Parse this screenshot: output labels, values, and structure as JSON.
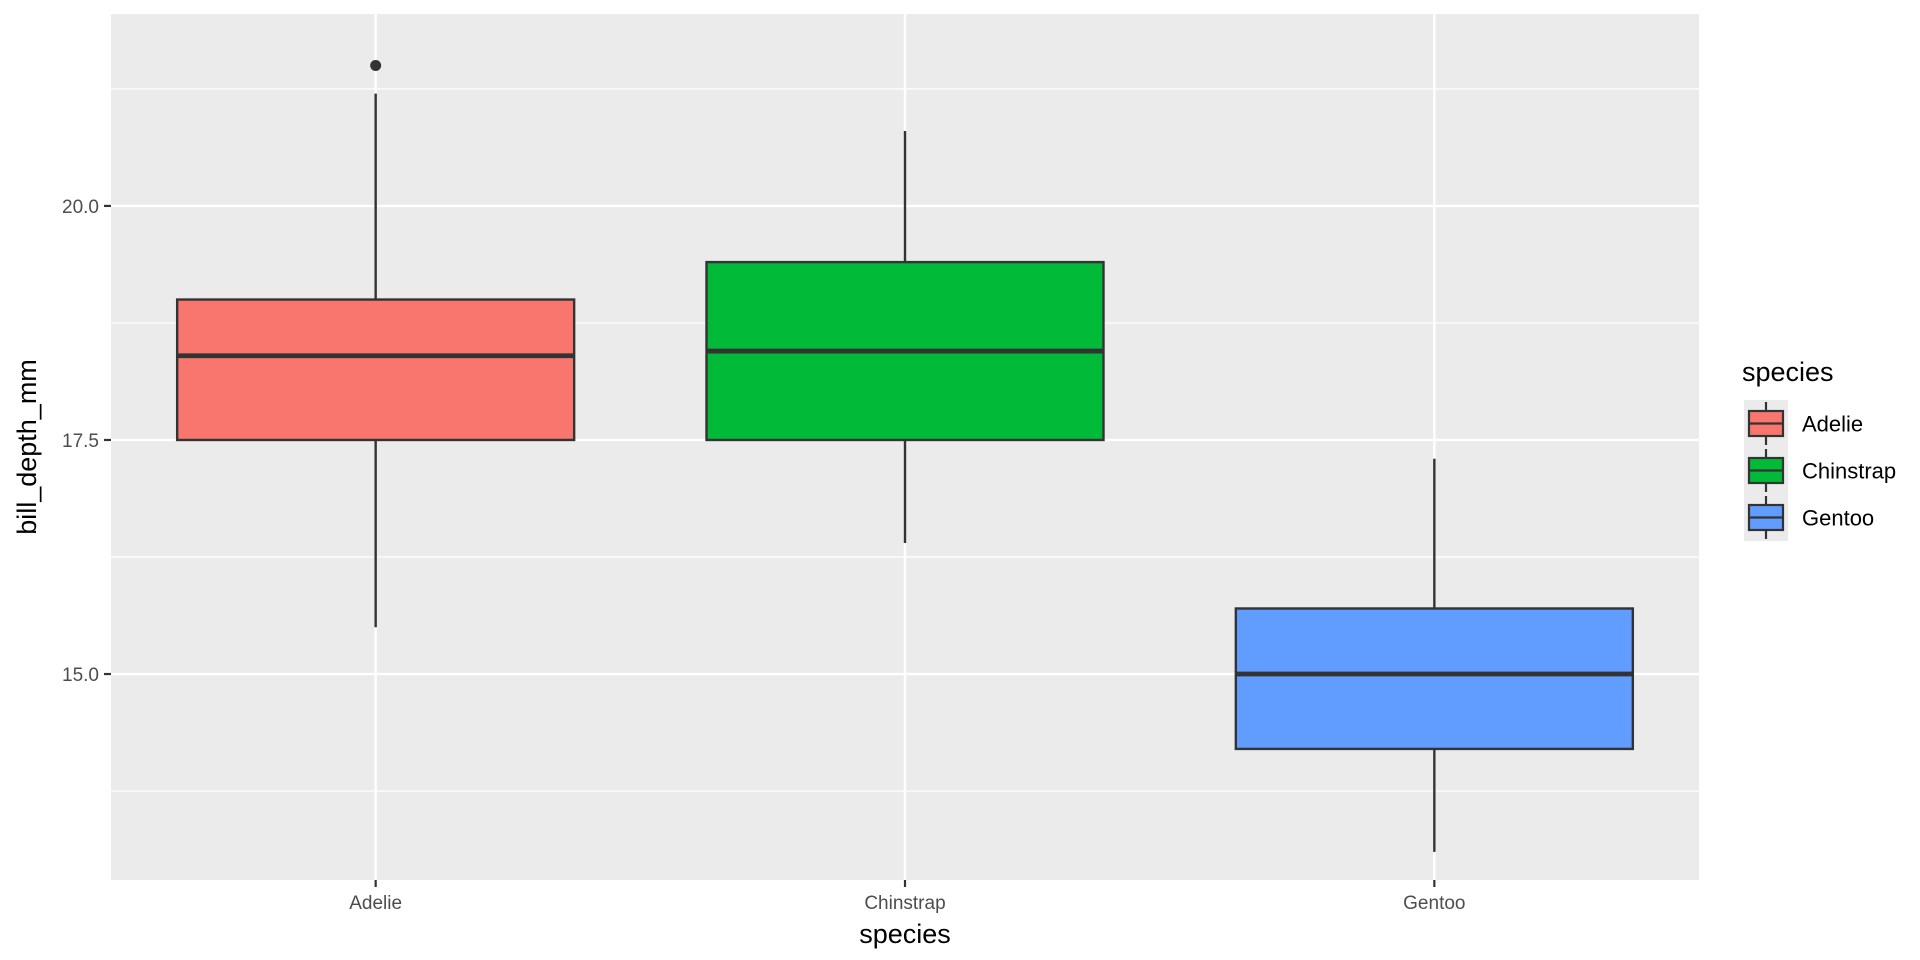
{
  "chart_data": {
    "type": "boxplot",
    "xlabel": "species",
    "ylabel": "bill_depth_mm",
    "categories": [
      "Adelie",
      "Chinstrap",
      "Gentoo"
    ],
    "ylim": [
      12.8,
      22.05
    ],
    "y_ticks": [
      15.0,
      17.5,
      20.0
    ],
    "y_tick_labels": [
      "15.0",
      "17.5",
      "20.0"
    ],
    "y_minor_ticks": [
      13.75,
      16.25,
      18.75,
      21.25
    ],
    "grid": true,
    "boxes": [
      {
        "category": "Adelie",
        "min": 15.5,
        "q1": 17.5,
        "median": 18.4,
        "q3": 19.0,
        "max": 21.2,
        "outliers": [
          21.5
        ],
        "color": "#F8766D"
      },
      {
        "category": "Chinstrap",
        "min": 16.4,
        "q1": 17.5,
        "median": 18.45,
        "q3": 19.4,
        "max": 20.8,
        "outliers": [],
        "color": "#00BA38"
      },
      {
        "category": "Gentoo",
        "min": 13.1,
        "q1": 14.2,
        "median": 15.0,
        "q3": 15.7,
        "max": 17.3,
        "outliers": [],
        "color": "#619CFF"
      }
    ],
    "legend": {
      "title": "species",
      "position": "right",
      "entries": [
        {
          "label": "Adelie",
          "color": "#F8766D"
        },
        {
          "label": "Chinstrap",
          "color": "#00BA38"
        },
        {
          "label": "Gentoo",
          "color": "#619CFF"
        }
      ]
    },
    "colors": {
      "panel": "#EBEBEB",
      "grid": "#FFFFFF",
      "outline": "#333333"
    }
  }
}
